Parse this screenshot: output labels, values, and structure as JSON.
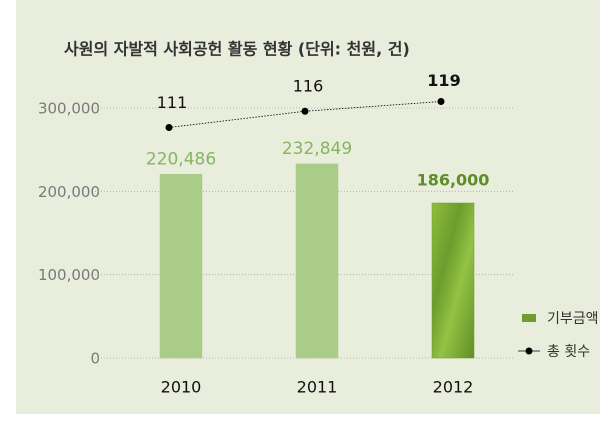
{
  "chart_data": {
    "type": "bar_line",
    "title": "사원의 자발적 사회공헌 활동 현황 (단위: 천원, 건)",
    "categories": [
      "2010",
      "2011",
      "2012"
    ],
    "series": [
      {
        "name": "기부금액",
        "type": "bar",
        "colors": [
          "#a9cd88",
          "#a9cd88",
          "#6d9c2f"
        ],
        "label_colors": [
          "#86b563",
          "#86b563",
          "#5e8d2a"
        ],
        "bold_labels": [
          false,
          false,
          true
        ],
        "values": [
          220486,
          232849,
          186000
        ],
        "value_labels": [
          "220,486",
          "232,849",
          "186,000"
        ]
      },
      {
        "name": "총 횟수",
        "type": "line",
        "axis": "y2",
        "color": "#000000",
        "bold_labels": [
          false,
          false,
          true
        ],
        "values": [
          111,
          116,
          119
        ]
      }
    ],
    "ylim": [
      0,
      300000
    ],
    "yticks": [
      0,
      {
        "value": 100000,
        "label": "100,000"
      },
      {
        "value": 200000,
        "label": "200,000"
      },
      {
        "value": 300000,
        "label": "300,000"
      }
    ],
    "y2lim": [
      40,
      117
    ],
    "grid": true,
    "legend": "lower right"
  }
}
